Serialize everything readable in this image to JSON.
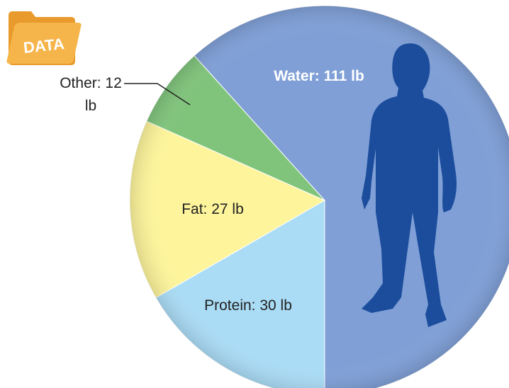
{
  "chart_data": {
    "type": "pie",
    "values": [
      111,
      30,
      27,
      12
    ],
    "value_labels": [
      "Water: 111 lb",
      "Protein: 30 lb",
      "Fat: 27 lb",
      "Other: 12 lb"
    ],
    "colors": [
      "#7f9fd6",
      "#aadcf6",
      "#fdf49b",
      "#80c47c"
    ],
    "badge": "DATA"
  }
}
